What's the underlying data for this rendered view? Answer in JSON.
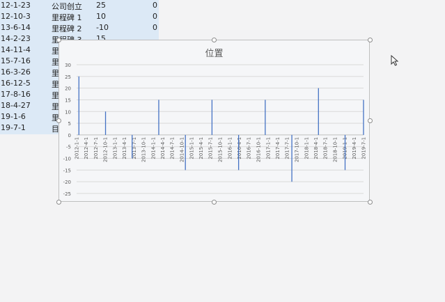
{
  "table": {
    "rows": [
      {
        "date": "12-1-23",
        "label": "公司创立",
        "value": "25",
        "zero": "0"
      },
      {
        "date": "12-10-3",
        "label": "里程碑 1",
        "value": "10",
        "zero": "0"
      },
      {
        "date": "13-6-14",
        "label": "里程碑 2",
        "value": "-10",
        "zero": "0"
      },
      {
        "date": "14-2-23",
        "label": "里程碑 3",
        "value": "15",
        "zero": ""
      },
      {
        "date": "14-11-4",
        "label": "里",
        "value": "",
        "zero": ""
      },
      {
        "date": "15-7-16",
        "label": "里",
        "value": "",
        "zero": ""
      },
      {
        "date": "16-3-26",
        "label": "里",
        "value": "",
        "zero": ""
      },
      {
        "date": "16-12-5",
        "label": "里",
        "value": "",
        "zero": ""
      },
      {
        "date": "17-8-16",
        "label": "里",
        "value": "",
        "zero": ""
      },
      {
        "date": "18-4-27",
        "label": "里",
        "value": "",
        "zero": ""
      },
      {
        "date": "19-1-6",
        "label": "里",
        "value": "",
        "zero": ""
      },
      {
        "date": "19-7-1",
        "label": "目",
        "value": "",
        "zero": ""
      }
    ]
  },
  "colors": {
    "bar": "#4472c4",
    "grid": "#d9d9d9",
    "axis_text": "#595959",
    "table_bg": "#dce9f6"
  },
  "chart_data": {
    "type": "bar",
    "title": "位置",
    "xlabel": "",
    "ylabel": "",
    "ylim": [
      -25,
      30
    ],
    "yticks": [
      30,
      25,
      20,
      15,
      10,
      5,
      0,
      -5,
      -10,
      -15,
      -20,
      -25
    ],
    "grid": true,
    "x_tick_labels": [
      "2012-1-1",
      "2012-4-1",
      "2012-7-1",
      "2012-10-1",
      "2013-1-1",
      "2013-4-1",
      "2013-7-1",
      "2013-10-1",
      "2014-1-1",
      "2014-4-1",
      "2014-7-1",
      "2014-10-1",
      "2015-1-1",
      "2015-4-1",
      "2015-7-1",
      "2015-10-1",
      "2016-1-1",
      "2016-4-1",
      "2016-7-1",
      "2016-10-1",
      "2017-1-1",
      "2017-4-1",
      "2017-7-1",
      "2017-10-1",
      "2018-1-1",
      "2018-4-1",
      "2018-7-1",
      "2018-10-1",
      "2019-1-1",
      "2019-4-1",
      "2019-7-1"
    ],
    "x_range": [
      "2012-1-1",
      "2019-7-1"
    ],
    "points": [
      {
        "x": "2012-1-23",
        "y": 25
      },
      {
        "x": "2012-10-3",
        "y": 10
      },
      {
        "x": "2013-6-14",
        "y": -10
      },
      {
        "x": "2014-2-23",
        "y": 15
      },
      {
        "x": "2014-11-4",
        "y": -15
      },
      {
        "x": "2015-7-16",
        "y": 15
      },
      {
        "x": "2016-3-26",
        "y": -15
      },
      {
        "x": "2016-12-5",
        "y": 15
      },
      {
        "x": "2017-8-16",
        "y": -20
      },
      {
        "x": "2018-4-27",
        "y": 20
      },
      {
        "x": "2019-1-6",
        "y": -15
      },
      {
        "x": "2019-7-1",
        "y": 15
      }
    ]
  }
}
